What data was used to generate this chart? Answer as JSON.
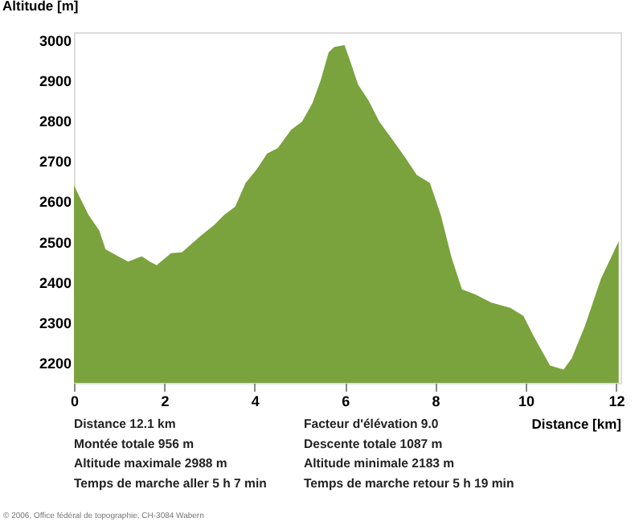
{
  "chart_data": {
    "type": "area",
    "xlabel": "Distance [km]",
    "ylabel": "Altitude [m]",
    "x": [
      0,
      0.32,
      0.56,
      0.7,
      1.03,
      1.2,
      1.5,
      1.68,
      1.83,
      2.15,
      2.39,
      2.8,
      3.1,
      3.33,
      3.57,
      3.8,
      4.04,
      4.28,
      4.51,
      4.81,
      5.05,
      5.28,
      5.46,
      5.64,
      5.76,
      5.99,
      6.11,
      6.29,
      6.52,
      6.76,
      7.06,
      7.35,
      7.59,
      7.88,
      8.12,
      8.36,
      8.59,
      8.89,
      9.24,
      9.66,
      9.95,
      10.19,
      10.54,
      10.84,
      11.02,
      11.31,
      11.67,
      12.06
    ],
    "series": [
      {
        "color": "#7aa23d",
        "values": [
          2640,
          2567,
          2528,
          2481,
          2461,
          2451,
          2464,
          2451,
          2442,
          2472,
          2474,
          2514,
          2541,
          2567,
          2587,
          2646,
          2679,
          2719,
          2732,
          2778,
          2798,
          2844,
          2900,
          2970,
          2983,
          2988,
          2950,
          2890,
          2851,
          2798,
          2752,
          2706,
          2666,
          2646,
          2567,
          2461,
          2382,
          2369,
          2349,
          2336,
          2316,
          2263,
          2193,
          2183,
          2211,
          2290,
          2409,
          2501
        ]
      }
    ],
    "xlim": [
      0,
      12.1
    ],
    "ylim": [
      2150,
      3020
    ],
    "xticks": [
      0,
      2,
      4,
      6,
      8,
      10,
      12
    ],
    "yticks": [
      2200,
      2300,
      2400,
      2500,
      2600,
      2700,
      2800,
      2900,
      3000
    ],
    "grid": false,
    "annotations": [
      "Distance 12.1 km",
      "Facteur d'élévation 9.0",
      "Montée totale  956 m",
      "Descente totale  1087 m",
      "Altitude maximale  2988 m",
      "Altitude minimale  2183 m",
      "Temps de marche aller  5 h 7 min",
      "Temps de marche retour  5 h 19 min",
      "© 2006, Office fédéral de topographie, CH-3084 Wabern"
    ]
  }
}
